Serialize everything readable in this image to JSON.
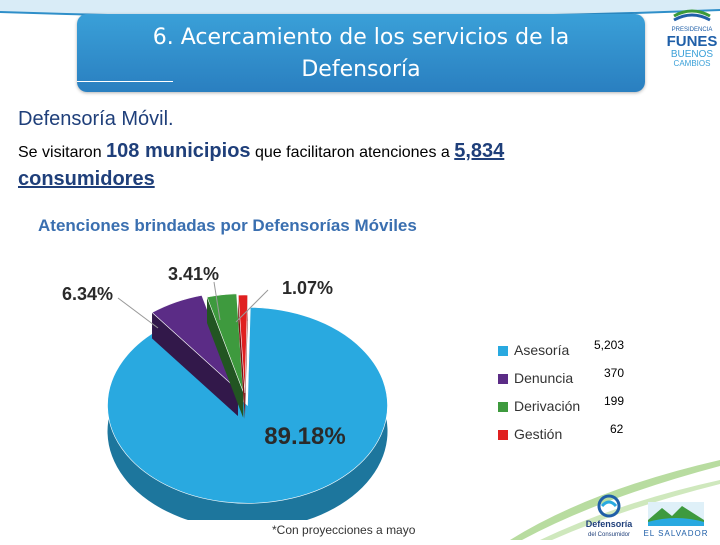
{
  "slide": {
    "title_line1": "6. Acercamiento de los servicios de la",
    "title_line2": "Defensoría",
    "subtitle": "Defensoría Móvil.",
    "summary_prefix": "Se visitaron",
    "summary_municipios": "108 municipios",
    "summary_middle": "que facilitaron atenciones a",
    "summary_count": "5,834",
    "summary_consumidores": "consumidores",
    "footnote": "*Con proyecciones a mayo"
  },
  "logos": {
    "funes_top": "PRESIDENCIA",
    "funes_name": "FUNES",
    "funes_line2": "BUENOS",
    "funes_line3": "CAMBIOS",
    "defensoria": "Defensoría",
    "defensoria_sub": "del Consumidor",
    "el_salvador": "EL SALVADOR",
    "colors": {
      "blue": "#1f5fa8",
      "green": "#3a9a3a"
    }
  },
  "chart_data": {
    "type": "pie",
    "title": "Atenciones brindadas por Defensorías Móviles",
    "categories": [
      "Asesoría",
      "Denuncia",
      "Derivación",
      "Gestión"
    ],
    "values": [
      5203,
      370,
      199,
      62
    ],
    "value_labels": [
      "5,203",
      "370",
      "199",
      "62"
    ],
    "percent_labels": [
      "89.18%",
      "6.34%",
      "3.41%",
      "1.07%"
    ],
    "colors": [
      "#29a9e0",
      "#5b2c86",
      "#3e9a3e",
      "#e02020"
    ],
    "legend_position": "right",
    "style": "3d-exploded"
  }
}
